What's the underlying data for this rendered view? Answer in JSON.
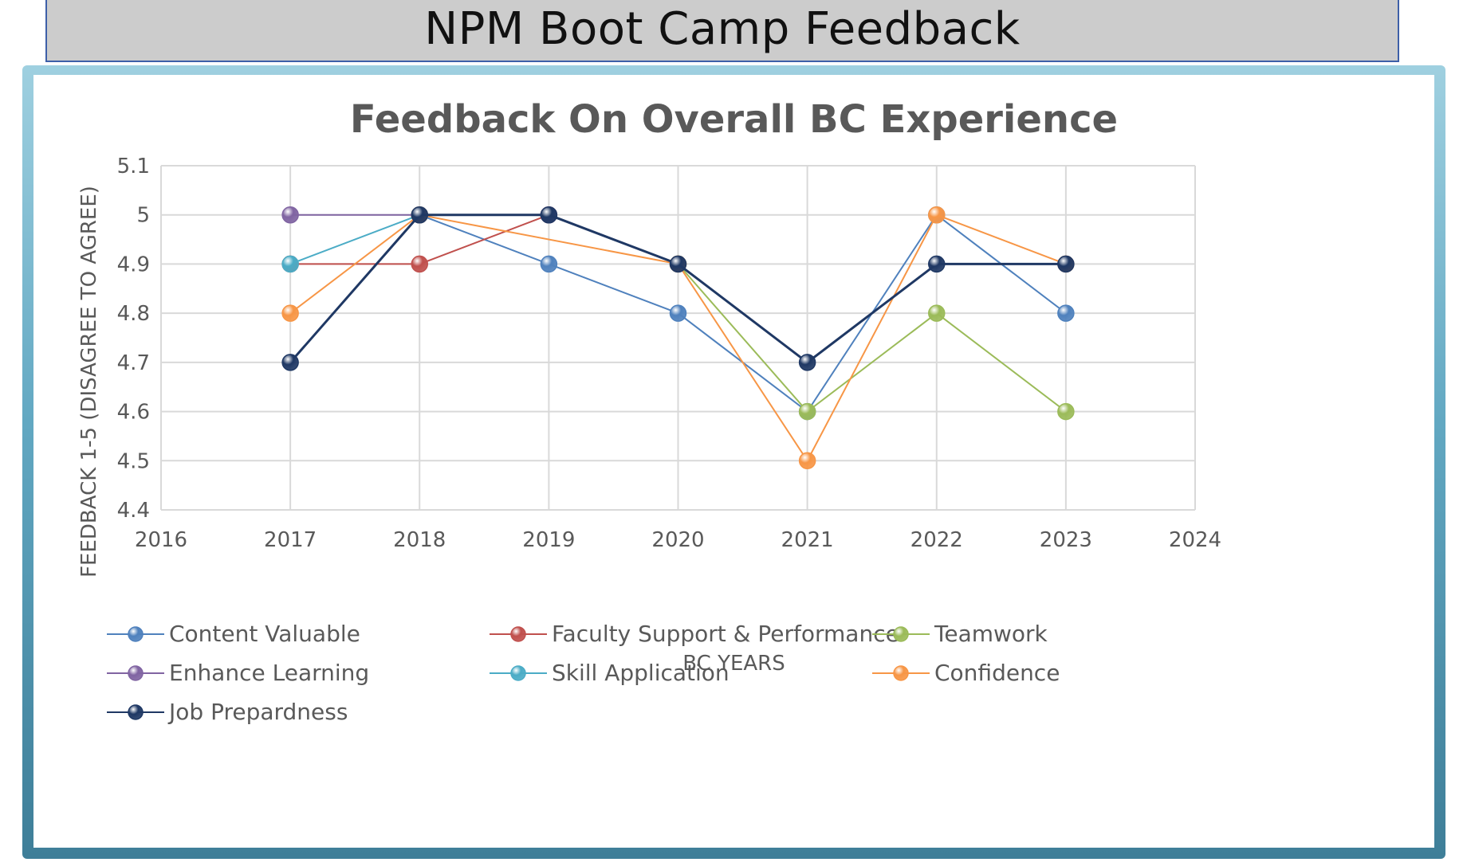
{
  "header": {
    "title": "NPM Boot Camp Feedback"
  },
  "chart_data": {
    "type": "line",
    "title": "Feedback On Overall BC Experience",
    "xlabel": "BC YEARS",
    "ylabel": "FEEDBACK 1-5 (DISAGREE TO AGREE)",
    "xlim": [
      2016,
      2024
    ],
    "ylim": [
      4.4,
      5.1
    ],
    "x_ticks": [
      "2016",
      "2017",
      "2018",
      "2019",
      "2020",
      "2021",
      "2022",
      "2023",
      "2024"
    ],
    "y_ticks": [
      "4.4",
      "4.5",
      "4.6",
      "4.7",
      "4.8",
      "4.9",
      "5",
      "5.1"
    ],
    "grid": true,
    "legend_position": "bottom",
    "x": [
      2017,
      2018,
      2019,
      2020,
      2021,
      2022,
      2023
    ],
    "series": [
      {
        "name": "Content Valuable",
        "color": "#4f81bd",
        "values": [
          null,
          5.0,
          4.9,
          4.8,
          4.6,
          5.0,
          4.8
        ]
      },
      {
        "name": "Faculty Support & Performance",
        "color": "#c0504d",
        "values": [
          4.9,
          4.9,
          5.0,
          null,
          null,
          null,
          null
        ]
      },
      {
        "name": "Teamwork",
        "color": "#9bbb59",
        "values": [
          null,
          null,
          null,
          4.9,
          4.6,
          4.8,
          4.6
        ]
      },
      {
        "name": "Enhance Learning",
        "color": "#8064a2",
        "values": [
          5.0,
          5.0,
          5.0,
          null,
          null,
          null,
          null
        ]
      },
      {
        "name": "Skill Application",
        "color": "#4bacc6",
        "values": [
          4.9,
          5.0,
          null,
          null,
          null,
          null,
          null
        ]
      },
      {
        "name": "Confidence",
        "color": "#f79646",
        "values": [
          4.8,
          5.0,
          null,
          4.9,
          4.5,
          5.0,
          4.9
        ]
      },
      {
        "name": "Job Prepardness",
        "color": "#1f3864",
        "values": [
          4.7,
          5.0,
          5.0,
          4.9,
          4.7,
          4.9,
          4.9
        ]
      }
    ]
  }
}
